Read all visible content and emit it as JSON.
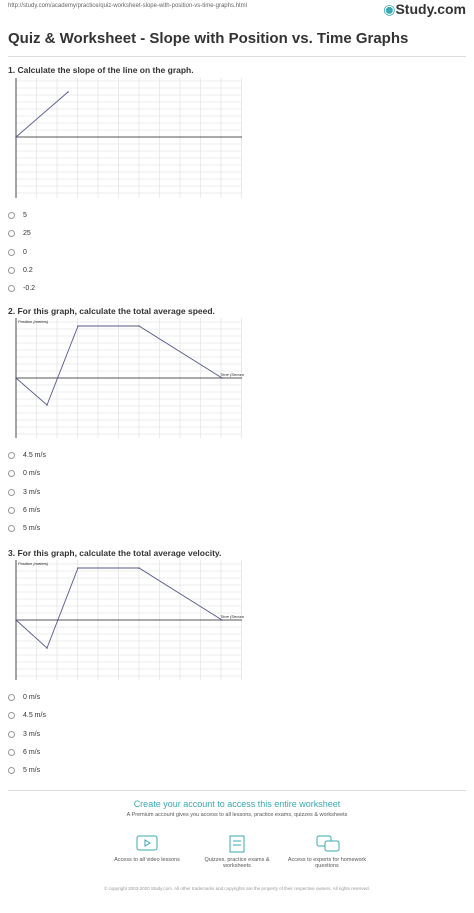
{
  "header": {
    "url": "http://study.com/academy/practice/quiz-worksheet-slope-with-position-vs-time-graphs.html",
    "logo": "Study.com",
    "title": "Quiz & Worksheet - Slope with Position vs. Time Graphs"
  },
  "questions": [
    {
      "prompt": "1. Calculate the slope of the line on the graph.",
      "options": [
        "5",
        "25",
        "0",
        "0.2",
        "-0.2"
      ]
    },
    {
      "prompt": "2. For this graph, calculate the total average speed.",
      "y_label": "Position (meters)",
      "x_label": "Time (Seconds)",
      "options": [
        "4.5 m/s",
        "0 m/s",
        "3 m/s",
        "6 m/s",
        "5 m/s"
      ]
    },
    {
      "prompt": "3. For this graph, calculate the total average velocity.",
      "y_label": "Position (meters)",
      "x_label": "Time (Seconds)",
      "options": [
        "0 m/s",
        "4.5 m/s",
        "3 m/s",
        "6 m/s",
        "5 m/s"
      ]
    }
  ],
  "footer": {
    "heading": "Create your account to access this entire worksheet",
    "subheading": "A Premium account gives you access to all lessons, practice exams, quizzes & worksheets",
    "features": [
      "Access to all video lessons",
      "Quizzes, practice exams & worksheets",
      "Access to experts for homework questions"
    ],
    "copyright": "© copyright 2003-2020 Study.com. All other trademarks and copyrights are the property of their respective owners. All rights reserved."
  }
}
